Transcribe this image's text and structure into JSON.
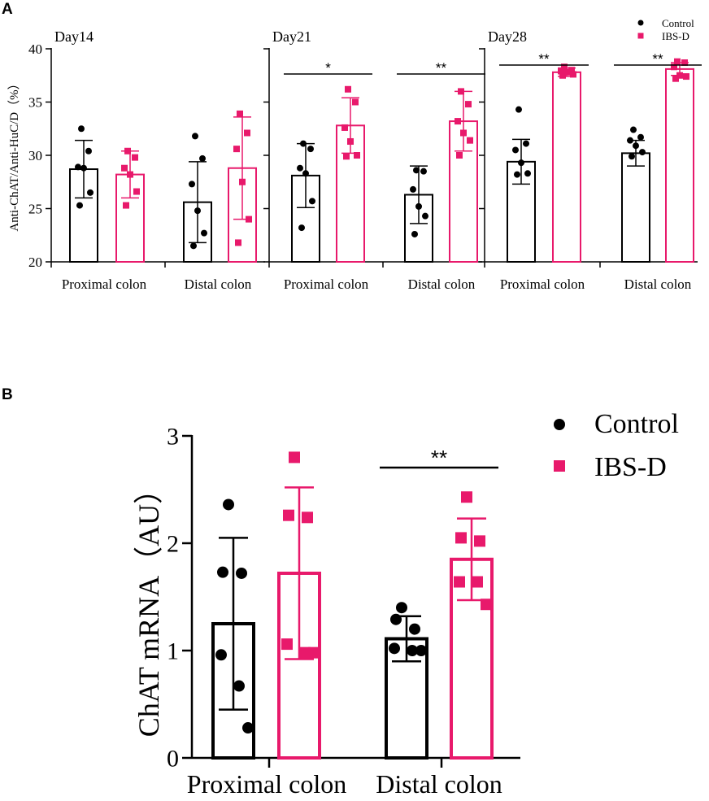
{
  "colors": {
    "control": "#000000",
    "ibsd": "#E8196B"
  },
  "panel_labels": {
    "a": "A",
    "b": "B"
  },
  "chart_data": [
    {
      "type": "bar",
      "panel": "A",
      "ylabel": "Anti-ChAT/Anti-HuC/D（%）",
      "ylim": [
        20,
        40
      ],
      "yticks": [
        20,
        25,
        30,
        35,
        40
      ],
      "legend": {
        "placement": "top-right",
        "entries": [
          "Control",
          "IBS-D"
        ]
      },
      "subplots": [
        {
          "title": "Day14",
          "categories": [
            "Proximal colon",
            "Distal colon"
          ],
          "series": [
            {
              "name": "Control",
              "values": [
                28.7,
                25.6
              ],
              "sd": [
                2.7,
                3.8
              ],
              "points": [
                [
                  32.5,
                  30.4,
                  28.9,
                  28.8,
                  26.5,
                  25.3
                ],
                [
                  31.8,
                  29.7,
                  27.3,
                  24.8,
                  22.7,
                  21.5
                ]
              ]
            },
            {
              "name": "IBS-D",
              "values": [
                28.2,
                28.8
              ],
              "sd": [
                2.2,
                4.8
              ],
              "points": [
                [
                  30.4,
                  29.8,
                  28.8,
                  28.2,
                  26.6,
                  25.3
                ],
                [
                  33.9,
                  32.1,
                  30.6,
                  27.5,
                  24.0,
                  21.8
                ]
              ]
            }
          ],
          "significance": [
            "",
            ""
          ]
        },
        {
          "title": "Day21",
          "categories": [
            "Proximal colon",
            "Distal colon"
          ],
          "series": [
            {
              "name": "Control",
              "values": [
                28.1,
                26.3
              ],
              "sd": [
                3.0,
                2.7
              ],
              "points": [
                [
                  31.1,
                  30.6,
                  28.8,
                  28.3,
                  25.7,
                  23.2
                ],
                [
                  28.6,
                  28.5,
                  26.8,
                  25.2,
                  24.3,
                  22.6
                ]
              ]
            },
            {
              "name": "IBS-D",
              "values": [
                32.8,
                33.2
              ],
              "sd": [
                2.6,
                2.8
              ],
              "points": [
                [
                  36.2,
                  35.0,
                  32.6,
                  31.3,
                  30.0,
                  29.9
                ],
                [
                  36.0,
                  34.8,
                  33.2,
                  32.1,
                  31.4,
                  30.0
                ]
              ]
            }
          ],
          "significance": [
            "*",
            "**"
          ]
        },
        {
          "title": "Day28",
          "categories": [
            "Proximal colon",
            "Distal colon"
          ],
          "series": [
            {
              "name": "Control",
              "values": [
                29.4,
                30.2
              ],
              "sd": [
                2.1,
                1.2
              ],
              "points": [
                [
                  34.3,
                  31.1,
                  30.5,
                  29.3,
                  28.3,
                  28.2
                ],
                [
                  32.4,
                  31.7,
                  31.4,
                  30.9,
                  30.3,
                  29.9
                ]
              ]
            },
            {
              "name": "IBS-D",
              "values": [
                37.8,
                38.1
              ],
              "sd": [
                0.4,
                0.6
              ],
              "points": [
                [
                  38.3,
                  38.0,
                  37.9,
                  37.8,
                  37.6,
                  37.5
                ],
                [
                  38.8,
                  38.7,
                  38.3,
                  37.5,
                  37.4,
                  37.2
                ]
              ]
            }
          ],
          "significance": [
            "**",
            "**"
          ]
        }
      ]
    },
    {
      "type": "bar",
      "panel": "B",
      "ylabel": "ChAT mRNA（AU）",
      "ylim": [
        0,
        3
      ],
      "yticks": [
        0,
        1,
        2,
        3
      ],
      "categories": [
        "Proximal colon",
        "Distal colon"
      ],
      "legend": {
        "placement": "top-right",
        "entries": [
          "Control",
          "IBS-D"
        ]
      },
      "series": [
        {
          "name": "Control",
          "values": [
            1.25,
            1.11
          ],
          "sd": [
            0.8,
            0.21
          ],
          "points": [
            [
              2.36,
              1.73,
              1.72,
              0.96,
              0.67,
              0.28
            ],
            [
              1.4,
              1.29,
              1.2,
              1.02,
              1.0,
              1.0
            ]
          ]
        },
        {
          "name": "IBS-D",
          "values": [
            1.72,
            1.85
          ],
          "sd": [
            0.8,
            0.38
          ],
          "points": [
            [
              2.8,
              2.26,
              2.24,
              1.06,
              0.98,
              0.98
            ],
            [
              2.43,
              2.05,
              2.02,
              1.64,
              1.64,
              1.43
            ]
          ]
        }
      ],
      "significance": [
        "",
        "**"
      ]
    }
  ]
}
